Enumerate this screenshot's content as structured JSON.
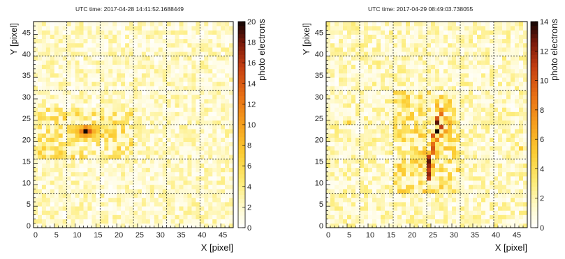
{
  "chart_data": [
    {
      "type": "heatmap",
      "title": "UTC time: 2017-04-28 14:41:52.1688449",
      "xlabel": "X [pixel]",
      "ylabel": "Y [pixel]",
      "xlim": [
        0,
        48
      ],
      "ylim": [
        0,
        48
      ],
      "grid_rows": 48,
      "grid_cols": 48,
      "x_ticks": [
        0,
        5,
        10,
        15,
        20,
        25,
        30,
        35,
        40,
        45
      ],
      "y_ticks": [
        0,
        5,
        10,
        15,
        20,
        25,
        30,
        35,
        40,
        45
      ],
      "grid_lines_at": [
        8,
        16,
        24,
        32,
        40
      ],
      "grid": true,
      "colorbar": {
        "label": "photo electrons",
        "min": 0,
        "max": 20,
        "ticks": [
          0,
          2,
          4,
          6,
          8,
          10,
          12,
          14,
          16,
          18,
          20
        ]
      },
      "background_level": 2.3,
      "hotspots": [
        {
          "x": 12,
          "y": 22,
          "value": 20
        },
        {
          "x": 13,
          "y": 22,
          "value": 14
        },
        {
          "x": 11,
          "y": 22,
          "value": 12
        },
        {
          "x": 12,
          "y": 23,
          "value": 11
        },
        {
          "x": 12,
          "y": 21,
          "value": 10
        },
        {
          "x": 11,
          "y": 21,
          "value": 9
        },
        {
          "x": 13,
          "y": 21,
          "value": 9
        },
        {
          "x": 13,
          "y": 23,
          "value": 9
        },
        {
          "x": 10,
          "y": 22,
          "value": 8
        },
        {
          "x": 14,
          "y": 22,
          "value": 9
        },
        {
          "x": 11,
          "y": 23,
          "value": 8
        },
        {
          "x": 14,
          "y": 23,
          "value": 7
        },
        {
          "x": 15,
          "y": 22,
          "value": 7
        },
        {
          "x": 9,
          "y": 22,
          "value": 7
        },
        {
          "x": 10,
          "y": 21,
          "value": 7
        },
        {
          "x": 14,
          "y": 21,
          "value": 7
        },
        {
          "x": 15,
          "y": 23,
          "value": 7
        },
        {
          "x": 9,
          "y": 23,
          "value": 6
        },
        {
          "x": 10,
          "y": 23,
          "value": 7
        }
      ],
      "highlight_region": {
        "x0": 0,
        "x1": 24,
        "y0": 16,
        "y1": 28,
        "level": 4.2
      }
    },
    {
      "type": "heatmap",
      "title": "UTC time: 2017-04-29 08:49:03.738055",
      "xlabel": "X [pixel]",
      "ylabel": "Y [pixel]",
      "xlim": [
        0,
        48
      ],
      "ylim": [
        0,
        48
      ],
      "grid_rows": 48,
      "grid_cols": 48,
      "x_ticks": [
        0,
        5,
        10,
        15,
        20,
        25,
        30,
        35,
        40,
        45
      ],
      "y_ticks": [
        0,
        5,
        10,
        15,
        20,
        25,
        30,
        35,
        40,
        45
      ],
      "grid_lines_at": [
        8,
        16,
        24,
        32,
        40
      ],
      "grid": true,
      "colorbar": {
        "label": "photo electrons",
        "min": 0,
        "max": 14,
        "ticks": [
          0,
          2,
          4,
          6,
          8,
          10,
          12,
          14
        ]
      },
      "background_level": 1.8,
      "hotspots": [
        {
          "x": 26,
          "y": 22,
          "value": 14
        },
        {
          "x": 26,
          "y": 24,
          "value": 13
        },
        {
          "x": 27,
          "y": 23,
          "value": 11
        },
        {
          "x": 25,
          "y": 21,
          "value": 10
        },
        {
          "x": 26,
          "y": 25,
          "value": 10
        },
        {
          "x": 27,
          "y": 26,
          "value": 9
        },
        {
          "x": 25,
          "y": 19,
          "value": 9
        },
        {
          "x": 25,
          "y": 18,
          "value": 10
        },
        {
          "x": 25,
          "y": 17,
          "value": 9
        },
        {
          "x": 24,
          "y": 16,
          "value": 11
        },
        {
          "x": 24,
          "y": 15,
          "value": 13
        },
        {
          "x": 24,
          "y": 14,
          "value": 12
        },
        {
          "x": 24,
          "y": 13,
          "value": 11
        },
        {
          "x": 24,
          "y": 12,
          "value": 12
        },
        {
          "x": 24,
          "y": 11,
          "value": 11
        },
        {
          "x": 25,
          "y": 14,
          "value": 7
        },
        {
          "x": 26,
          "y": 20,
          "value": 8
        },
        {
          "x": 27,
          "y": 21,
          "value": 7
        },
        {
          "x": 28,
          "y": 22,
          "value": 7
        },
        {
          "x": 27,
          "y": 27,
          "value": 7
        },
        {
          "x": 28,
          "y": 25,
          "value": 6
        },
        {
          "x": 26,
          "y": 28,
          "value": 6
        },
        {
          "x": 23,
          "y": 17,
          "value": 6
        },
        {
          "x": 29,
          "y": 24,
          "value": 6
        },
        {
          "x": 29,
          "y": 20,
          "value": 5
        },
        {
          "x": 30,
          "y": 18,
          "value": 5
        },
        {
          "x": 18,
          "y": 20,
          "value": 5
        },
        {
          "x": 20,
          "y": 25,
          "value": 5
        },
        {
          "x": 46,
          "y": 18,
          "value": 5
        },
        {
          "x": 5,
          "y": 24,
          "value": 5
        }
      ],
      "highlight_region": {
        "x0": 16,
        "x1": 32,
        "y0": 8,
        "y1": 32,
        "level": 3.2
      }
    }
  ]
}
